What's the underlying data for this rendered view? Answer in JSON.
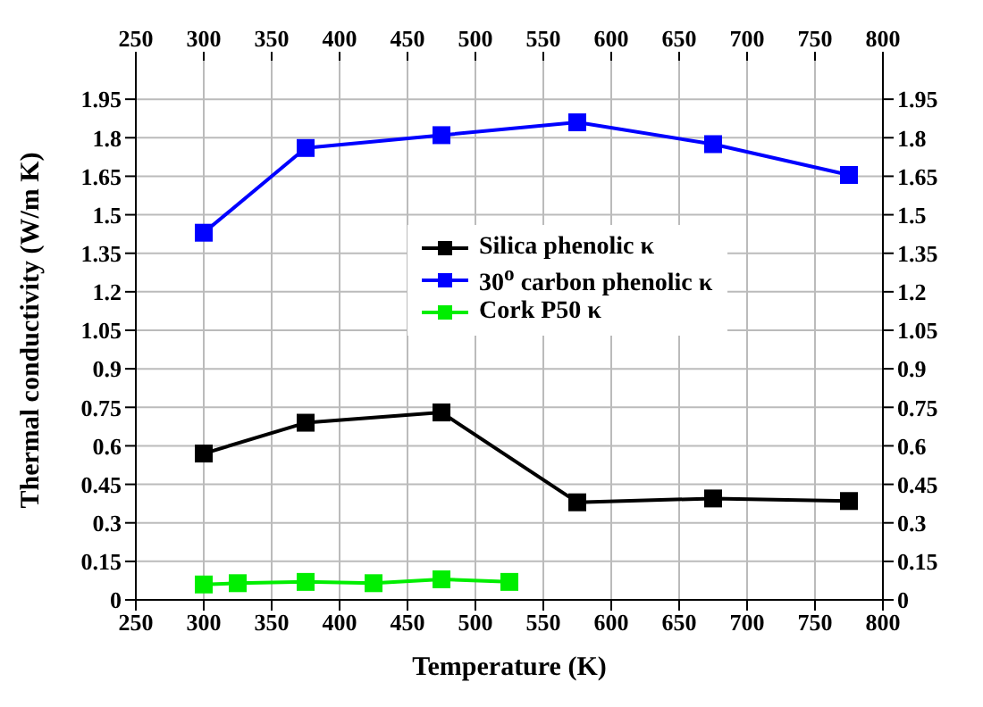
{
  "chart_data": {
    "type": "line",
    "xlabel": "Temperature (K)",
    "ylabel": "Thermal conductivity (W/m K)",
    "x": [
      300,
      375,
      475,
      575,
      675,
      775
    ],
    "series": [
      {
        "name": "Silica phenolic κ",
        "color": "#000000",
        "values": [
          0.57,
          0.69,
          0.73,
          0.38,
          0.395,
          0.385
        ]
      },
      {
        "name": "30$^{o}$ carbon phenolic κ",
        "color": "#0000ff",
        "values": [
          1.43,
          1.76,
          1.81,
          1.86,
          1.775,
          1.655
        ]
      },
      {
        "name": "Cork P50 κ",
        "color": "#00ee00",
        "x": [
          300,
          325,
          375,
          425,
          475,
          525
        ],
        "values": [
          0.06,
          0.065,
          0.07,
          0.065,
          0.08,
          0.07
        ]
      }
    ],
    "xlim": [
      250,
      800
    ],
    "xticks": [
      250,
      300,
      350,
      400,
      450,
      500,
      550,
      600,
      650,
      700,
      750,
      800
    ],
    "x2lim": [
      250,
      800
    ],
    "x2ticks": [
      250,
      300,
      350,
      400,
      450,
      500,
      550,
      600,
      650,
      700,
      750,
      800
    ],
    "ylim": [
      0,
      2.1
    ],
    "yticks": [
      0,
      0.15,
      0.3,
      0.45,
      0.6,
      0.75,
      0.9,
      1.05,
      1.2,
      1.35,
      1.5,
      1.65,
      1.8,
      1.95
    ],
    "y2lim": [
      0,
      2.1
    ],
    "y2ticks": [
      0,
      0.15,
      0.3,
      0.45,
      0.6,
      0.75,
      0.9,
      1.05,
      1.2,
      1.35,
      1.5,
      1.65,
      1.8,
      1.95
    ],
    "grid": true,
    "legend": "center",
    "marker": "square",
    "line_style": "solid"
  }
}
